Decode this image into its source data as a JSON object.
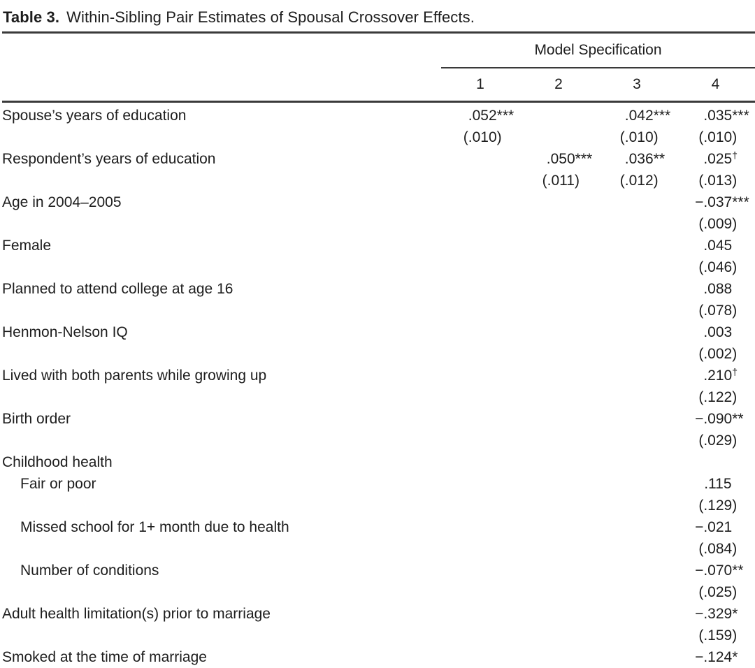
{
  "colors": {
    "text": "#1d1d1d",
    "rule": "#3a3a3a",
    "background": "#ffffff"
  },
  "table": {
    "title_label": "Table 3.",
    "title_text": "Within-Sibling Pair Estimates of Spousal Crossover Effects.",
    "header": {
      "group_label": "Model Specification",
      "columns": [
        "1",
        "2",
        "3",
        "4"
      ]
    },
    "rows": [
      {
        "label": "Spouse’s years of education",
        "est": [
          ".052***",
          "",
          ".042***",
          ".035***"
        ],
        "se": [
          "(.010)",
          "",
          "(.010)",
          "(.010)"
        ]
      },
      {
        "label": "Respondent’s years of education",
        "est": [
          "",
          ".050***",
          ".036**",
          ".025†"
        ],
        "se": [
          "",
          "(.011)",
          "(.012)",
          "(.013)"
        ]
      },
      {
        "label": "Age in 2004–2005",
        "est": [
          "",
          "",
          "",
          "−.037***"
        ],
        "se": [
          "",
          "",
          "",
          "(.009)"
        ]
      },
      {
        "label": "Female",
        "est": [
          "",
          "",
          "",
          ".045"
        ],
        "se": [
          "",
          "",
          "",
          "(.046)"
        ]
      },
      {
        "label": "Planned to attend college at age 16",
        "est": [
          "",
          "",
          "",
          ".088"
        ],
        "se": [
          "",
          "",
          "",
          "(.078)"
        ]
      },
      {
        "label": "Henmon-Nelson IQ",
        "est": [
          "",
          "",
          "",
          ".003"
        ],
        "se": [
          "",
          "",
          "",
          "(.002)"
        ]
      },
      {
        "label": "Lived with both parents while growing up",
        "est": [
          "",
          "",
          "",
          ".210†"
        ],
        "se": [
          "",
          "",
          "",
          "(.122)"
        ]
      },
      {
        "label": "Birth order",
        "est": [
          "",
          "",
          "",
          "−.090**"
        ],
        "se": [
          "",
          "",
          "",
          "(.029)"
        ]
      },
      {
        "label": "Childhood health",
        "group": true
      },
      {
        "label": "Fair or poor",
        "indent": true,
        "est": [
          "",
          "",
          "",
          ".115"
        ],
        "se": [
          "",
          "",
          "",
          "(.129)"
        ]
      },
      {
        "label": "Missed school for 1+ month due to health",
        "indent": true,
        "est": [
          "",
          "",
          "",
          "−.021"
        ],
        "se": [
          "",
          "",
          "",
          "(.084)"
        ]
      },
      {
        "label": "Number of conditions",
        "indent": true,
        "est": [
          "",
          "",
          "",
          "−.070**"
        ],
        "se": [
          "",
          "",
          "",
          "(.025)"
        ]
      },
      {
        "label": "Adult health limitation(s) prior to marriage",
        "est": [
          "",
          "",
          "",
          "−.329*"
        ],
        "se": [
          "",
          "",
          "",
          "(.159)"
        ]
      },
      {
        "label": "Smoked at the time of marriage",
        "est": [
          "",
          "",
          "",
          "−.124*"
        ],
        "se": null
      }
    ]
  }
}
